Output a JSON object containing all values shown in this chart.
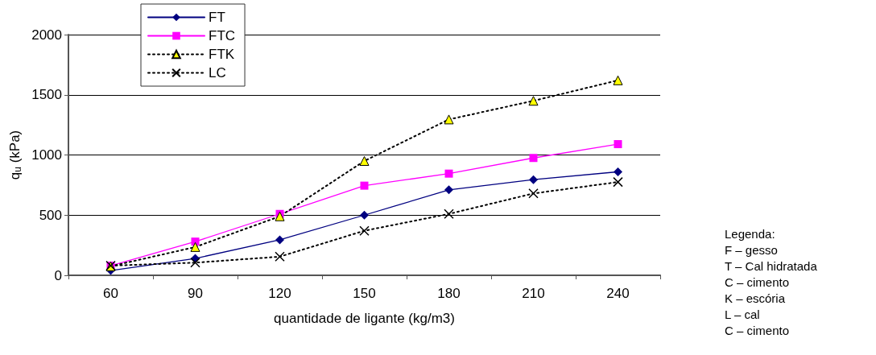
{
  "chart_data": {
    "type": "line",
    "xlabel": "quantidade de ligante (kg/m3)",
    "ylabel": "q$_{u}$ (kPa)",
    "categories": [
      "60",
      "90",
      "120",
      "150",
      "180",
      "210",
      "240"
    ],
    "ylim": [
      0,
      2000
    ],
    "yticks": [
      0,
      500,
      1000,
      1500,
      2000
    ],
    "grid": "y",
    "legend": "top left",
    "series": [
      {
        "name": "FT",
        "color": "#000080",
        "marker": "diamond",
        "line_style": "solid",
        "values": [
          40,
          140,
          295,
          500,
          710,
          795,
          860
        ]
      },
      {
        "name": "FTC",
        "color": "#ff00ff",
        "marker": "square",
        "line_style": "solid",
        "values": [
          80,
          280,
          510,
          745,
          845,
          975,
          1090
        ]
      },
      {
        "name": "FTK",
        "color": "#ffff00",
        "marker": "triangle",
        "line_style": "dotted",
        "values": [
          75,
          235,
          490,
          950,
          1295,
          1450,
          1620
        ]
      },
      {
        "name": "LC",
        "color": "#000000",
        "marker": "cross",
        "line_style": "dotted",
        "values": [
          80,
          105,
          155,
          370,
          510,
          680,
          775
        ]
      }
    ],
    "annotations": [
      "Legenda:",
      "F – gesso",
      "T – Cal hidratada",
      "C – cimento",
      "K – escória",
      "L – cal",
      "C – cimento"
    ]
  }
}
